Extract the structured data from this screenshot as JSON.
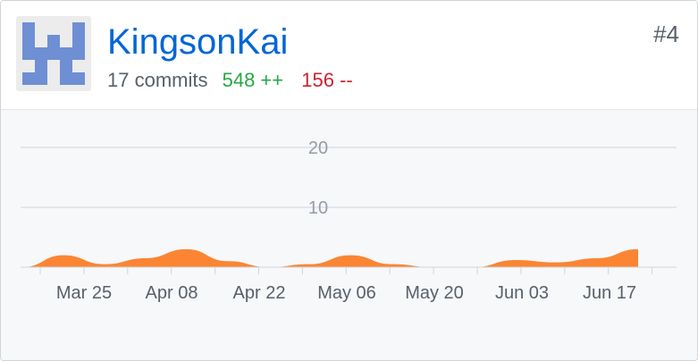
{
  "contributor": {
    "username": "KingsonKai",
    "commits": "17 commits",
    "additions": "548 ++",
    "deletions": "156 --",
    "rank": "#4",
    "avatar_icon": "identicon-avatar"
  },
  "colors": {
    "link": "#0366d6",
    "additions": "#28a745",
    "deletions": "#cb2431",
    "area_fill": "#fb8532"
  },
  "chart_data": {
    "type": "area",
    "title": "",
    "xlabel": "",
    "ylabel": "",
    "ylim": [
      0,
      20
    ],
    "y_ticks": [
      10,
      20
    ],
    "x_tick_labels": [
      "Mar 25",
      "Apr 08",
      "Apr 22",
      "May 06",
      "May 20",
      "Jun 03",
      "Jun 17"
    ],
    "grid": true,
    "series": [
      {
        "x": [
          "Mar 11",
          "Mar 18",
          "Mar 25",
          "Apr 01",
          "Apr 08",
          "Apr 15",
          "Apr 22",
          "Apr 29",
          "May 06",
          "May 13",
          "May 20",
          "May 27",
          "Jun 03",
          "Jun 10",
          "Jun 17",
          "Jun 24"
        ],
        "values": [
          0,
          2,
          0.5,
          1.5,
          3,
          1,
          0,
          0.5,
          2,
          0.5,
          0,
          0,
          1.2,
          0.8,
          1.5,
          3
        ]
      }
    ]
  }
}
